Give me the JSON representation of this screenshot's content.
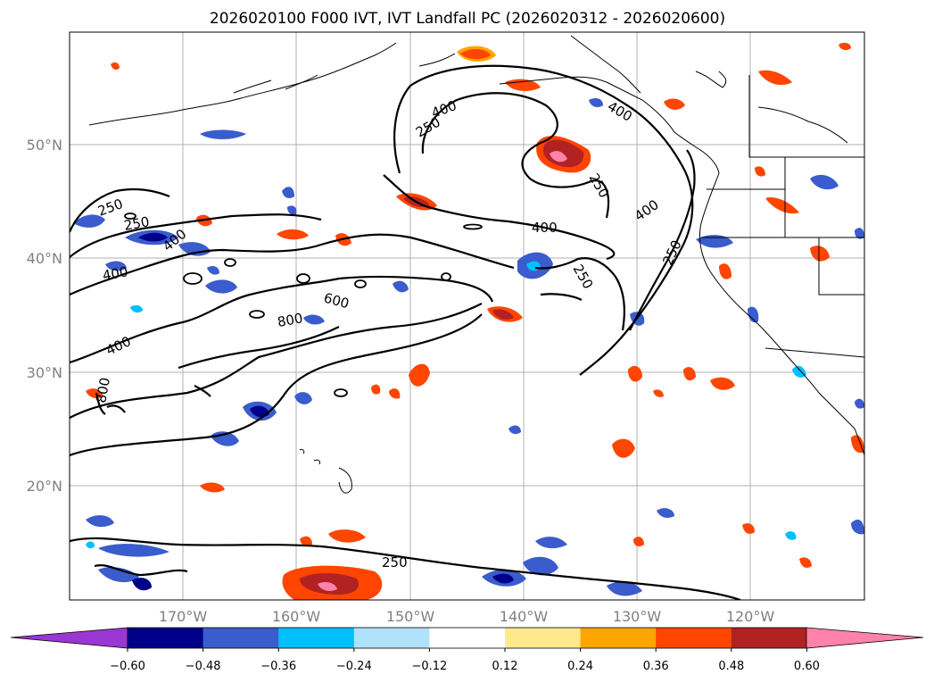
{
  "title": "2026020100 F000 IVT, IVT Landfall PC (2026020312 - 2026020600)",
  "map": {
    "lat_labels": [
      "50°N",
      "40°N",
      "30°N",
      "20°N"
    ],
    "lon_labels": [
      "170°W",
      "160°W",
      "150°W",
      "140°W",
      "130°W",
      "120°W"
    ],
    "ivt_contour_labels": [
      "250",
      "400",
      "400",
      "250",
      "400",
      "250",
      "400",
      "400",
      "250",
      "250",
      "400",
      "250",
      "600",
      "800",
      "400",
      "800",
      "250"
    ]
  },
  "colorbar": {
    "tick_labels": [
      "−0.60",
      "−0.48",
      "−0.36",
      "−0.24",
      "−0.12",
      "0.12",
      "0.24",
      "0.36",
      "0.48",
      "0.60"
    ],
    "colors": [
      "#9a36d2",
      "#00008b",
      "#3a5ccc",
      "#00bfff",
      "#afe1fa",
      "#ffffff",
      "#ffe98a",
      "#ffa500",
      "#ff4500",
      "#b22222",
      "#ff82ab"
    ]
  }
}
